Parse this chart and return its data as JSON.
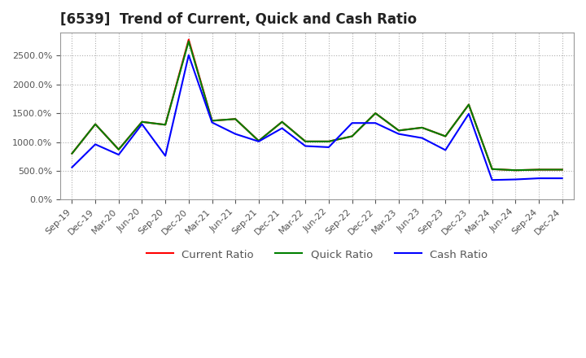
{
  "title": "[6539]  Trend of Current, Quick and Cash Ratio",
  "x_labels": [
    "Sep-19",
    "Dec-19",
    "Mar-20",
    "Jun-20",
    "Sep-20",
    "Dec-20",
    "Mar-21",
    "Jun-21",
    "Sep-21",
    "Dec-21",
    "Mar-22",
    "Jun-22",
    "Sep-22",
    "Dec-22",
    "Mar-23",
    "Jun-23",
    "Sep-23",
    "Dec-23",
    "Mar-24",
    "Jun-24",
    "Sep-24",
    "Dec-24"
  ],
  "current_ratio": [
    800,
    1310,
    870,
    1350,
    1300,
    2780,
    1370,
    1400,
    1020,
    1350,
    1010,
    1010,
    1100,
    1500,
    1200,
    1250,
    1100,
    1650,
    530,
    510,
    520,
    520
  ],
  "quick_ratio": [
    800,
    1310,
    870,
    1350,
    1300,
    2750,
    1370,
    1400,
    1020,
    1350,
    1010,
    1010,
    1100,
    1500,
    1200,
    1250,
    1100,
    1650,
    530,
    510,
    520,
    520
  ],
  "cash_ratio": [
    560,
    960,
    780,
    1310,
    760,
    2510,
    1340,
    1140,
    1010,
    1240,
    930,
    910,
    1330,
    1330,
    1140,
    1070,
    860,
    1490,
    340,
    350,
    370,
    370
  ],
  "current_color": "#FF0000",
  "quick_color": "#008000",
  "cash_color": "#0000FF",
  "ylim": [
    0,
    2900
  ],
  "yticks": [
    0,
    500,
    1000,
    1500,
    2000,
    2500
  ],
  "background_color": "#ffffff",
  "grid_color": "#b0b0b0",
  "title_fontsize": 12,
  "legend_fontsize": 9.5,
  "tick_fontsize": 8
}
